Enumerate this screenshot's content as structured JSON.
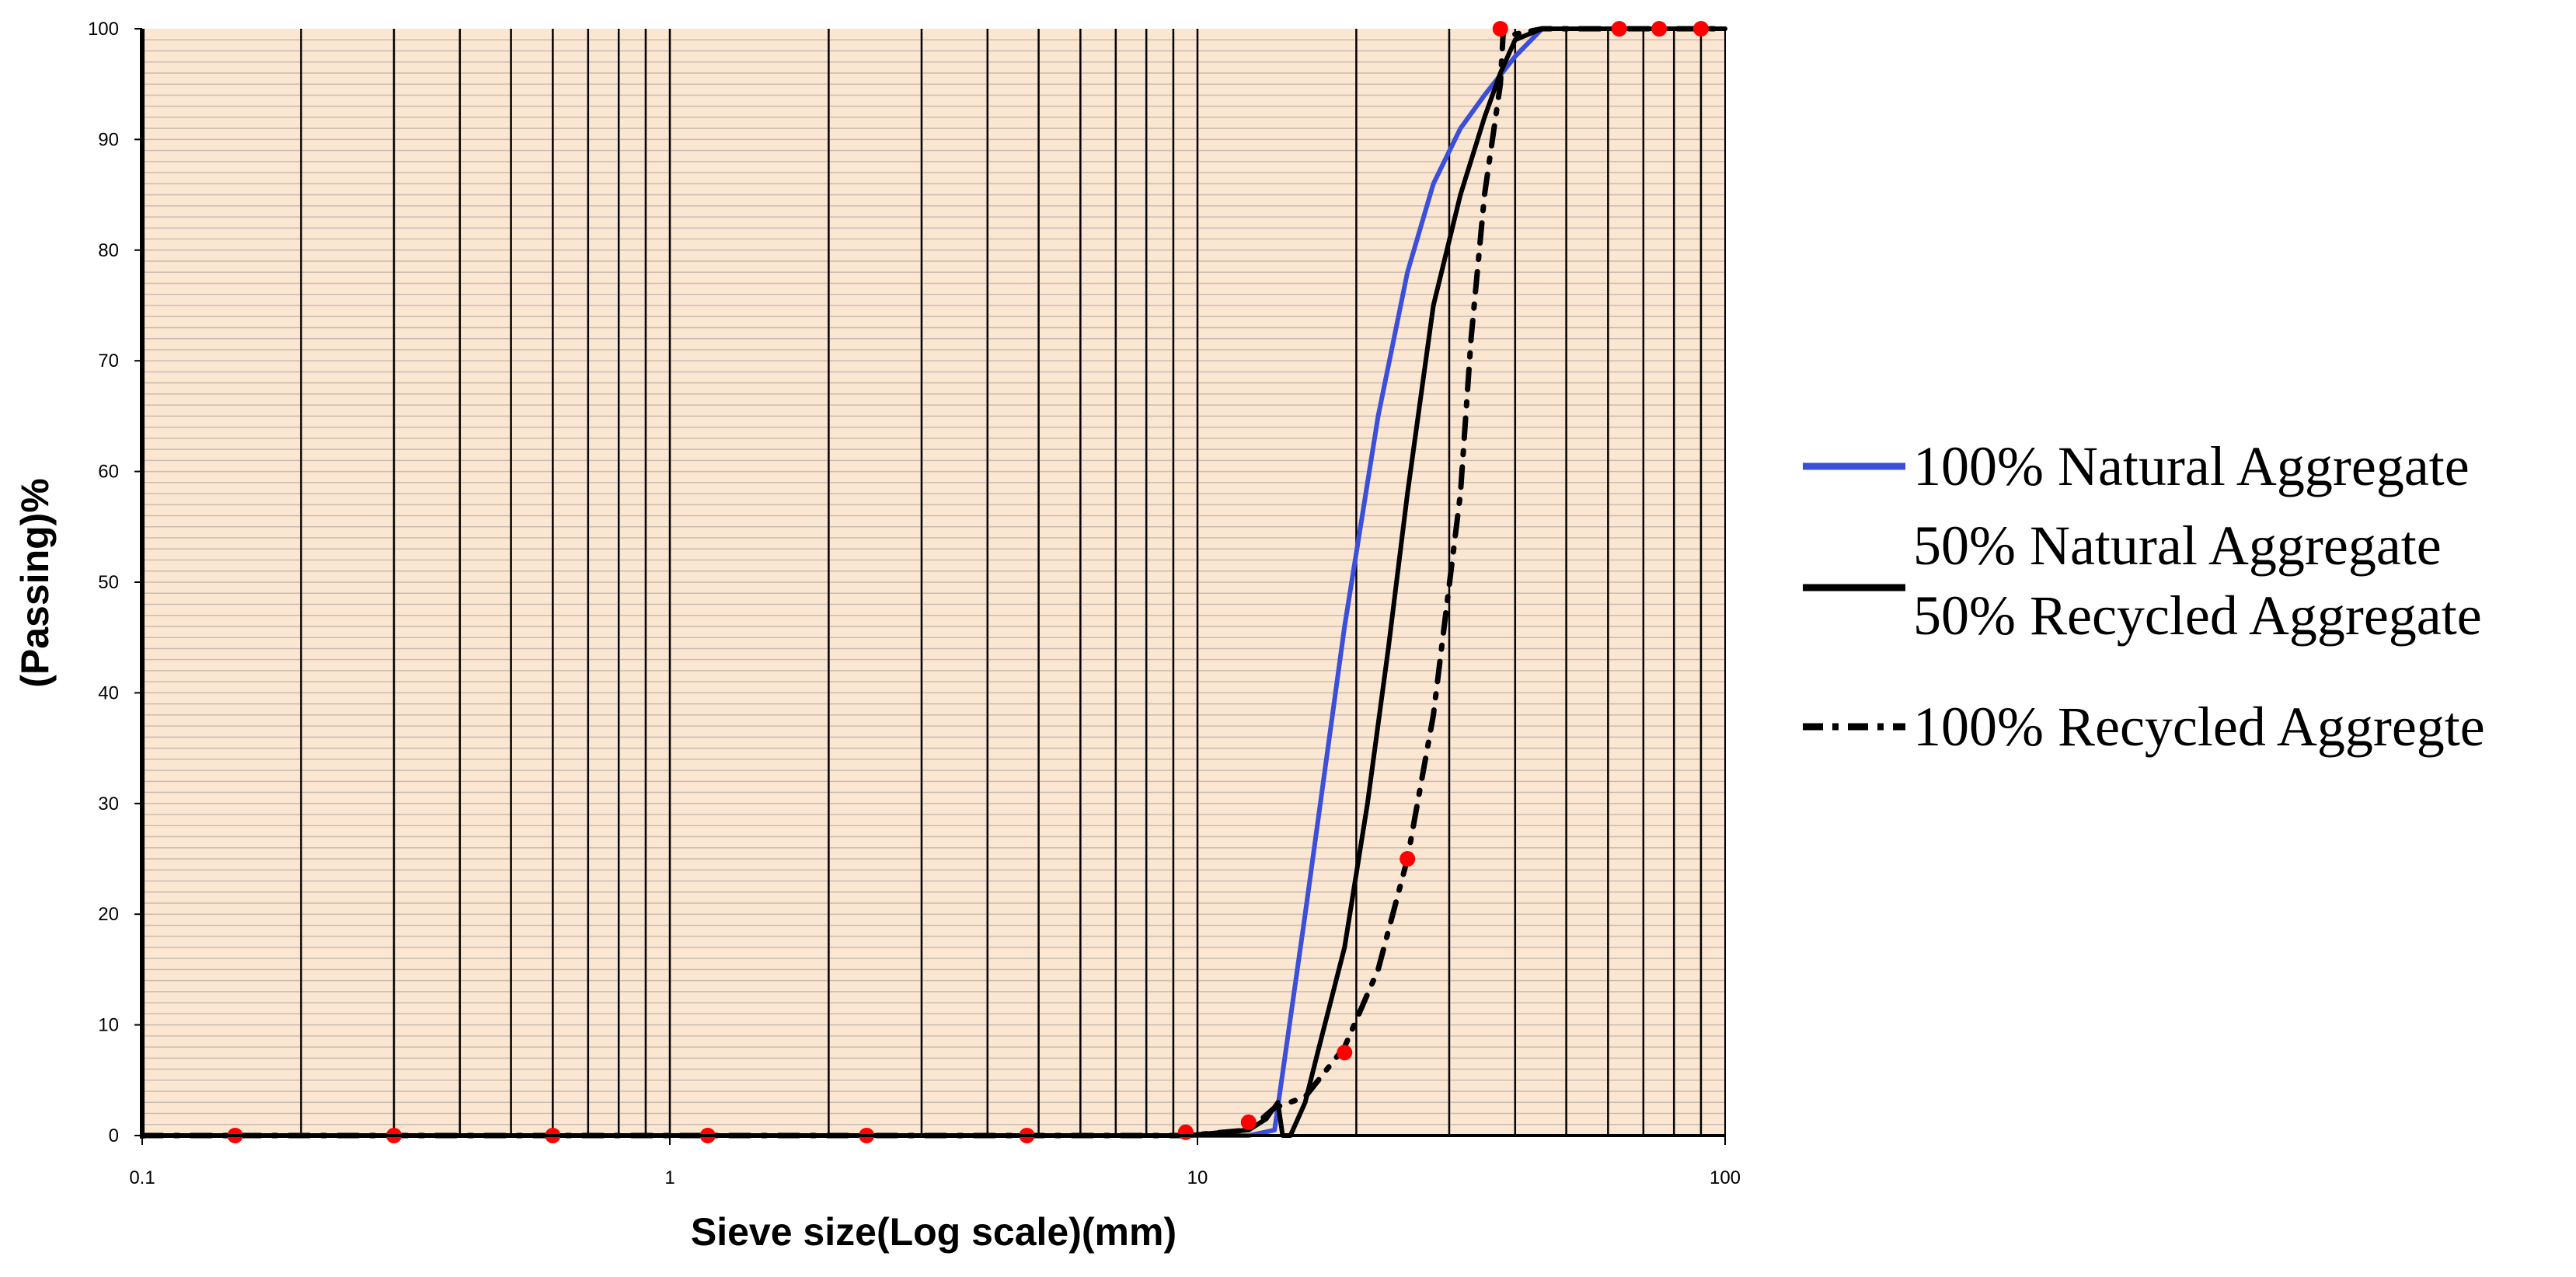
{
  "chart_data": {
    "type": "line",
    "title": "",
    "xlabel": "Sieve size(Log scale)(mm)",
    "ylabel": "(Passing)%",
    "x_scale": "log",
    "xlim": [
      0.1,
      100
    ],
    "ylim": [
      0,
      100
    ],
    "x_tick_labels": [
      "0.1",
      "1",
      "10",
      "100"
    ],
    "y_tick_labels": [
      "0",
      "10",
      "20",
      "30",
      "40",
      "50",
      "60",
      "70",
      "80",
      "90",
      "100"
    ],
    "grid": "on",
    "background_color": "#fbe6d2",
    "legend_position": "right",
    "series": [
      {
        "name": "100% Natural Aggregate",
        "color": "#3b4fd8",
        "style": "solid",
        "x": [
          0.1,
          9.5,
          12.5,
          14,
          16,
          19,
          22,
          25,
          28,
          31.5,
          35,
          40,
          45,
          50,
          63,
          75,
          90,
          100
        ],
        "y": [
          0,
          0,
          0,
          0.5,
          20,
          46,
          65,
          78,
          86,
          91,
          94,
          97.5,
          100,
          100,
          100,
          100,
          100,
          100
        ]
      },
      {
        "name": "50% Natural Aggregate 50% Recycled Aggregate",
        "color": "#000000",
        "style": "solid",
        "x": [
          0.1,
          9.5,
          12.5,
          13.5,
          14.2,
          14.5,
          15,
          16,
          17,
          19,
          21,
          23,
          25,
          28,
          31.5,
          35,
          37.5,
          40,
          45,
          50,
          63,
          100
        ],
        "y": [
          0,
          0,
          0.5,
          1.5,
          3,
          0,
          0,
          3,
          8,
          17,
          30,
          44,
          58,
          75,
          85,
          92,
          96,
          99,
          100,
          100,
          100,
          100
        ]
      },
      {
        "name": "100% Recycled Aggregte",
        "color": "#000000",
        "style": "dash-dot",
        "x": [
          0.1,
          9.5,
          12.5,
          14,
          16,
          19,
          22,
          25,
          28,
          31.5,
          33,
          35,
          37.5,
          38,
          40,
          45,
          50,
          63,
          75,
          90,
          100
        ],
        "y": [
          0,
          0,
          0.5,
          2.5,
          3.5,
          8,
          15,
          25,
          38,
          58,
          72,
          85,
          95,
          100,
          99.5,
          100,
          100,
          100,
          100,
          100,
          100
        ]
      }
    ],
    "markers": {
      "color": "#ff0000",
      "x": [
        0.15,
        0.3,
        0.6,
        1.18,
        2.36,
        4.75,
        9.5,
        12.5,
        19,
        25,
        37.5,
        63,
        75,
        90
      ],
      "y": [
        0,
        0,
        0,
        0,
        0,
        0,
        0.3,
        1.2,
        7.5,
        25,
        100,
        100,
        100,
        100
      ]
    },
    "legend": [
      {
        "lines": [
          "100% Natural Aggregate"
        ],
        "color": "#3b4fd8",
        "style": "solid"
      },
      {
        "lines": [
          "50% Natural Aggregate",
          "50% Recycled Aggregate"
        ],
        "color": "#000000",
        "style": "solid"
      },
      {
        "lines": [
          "100% Recycled Aggregte"
        ],
        "color": "#000000",
        "style": "dash-dot"
      }
    ]
  }
}
